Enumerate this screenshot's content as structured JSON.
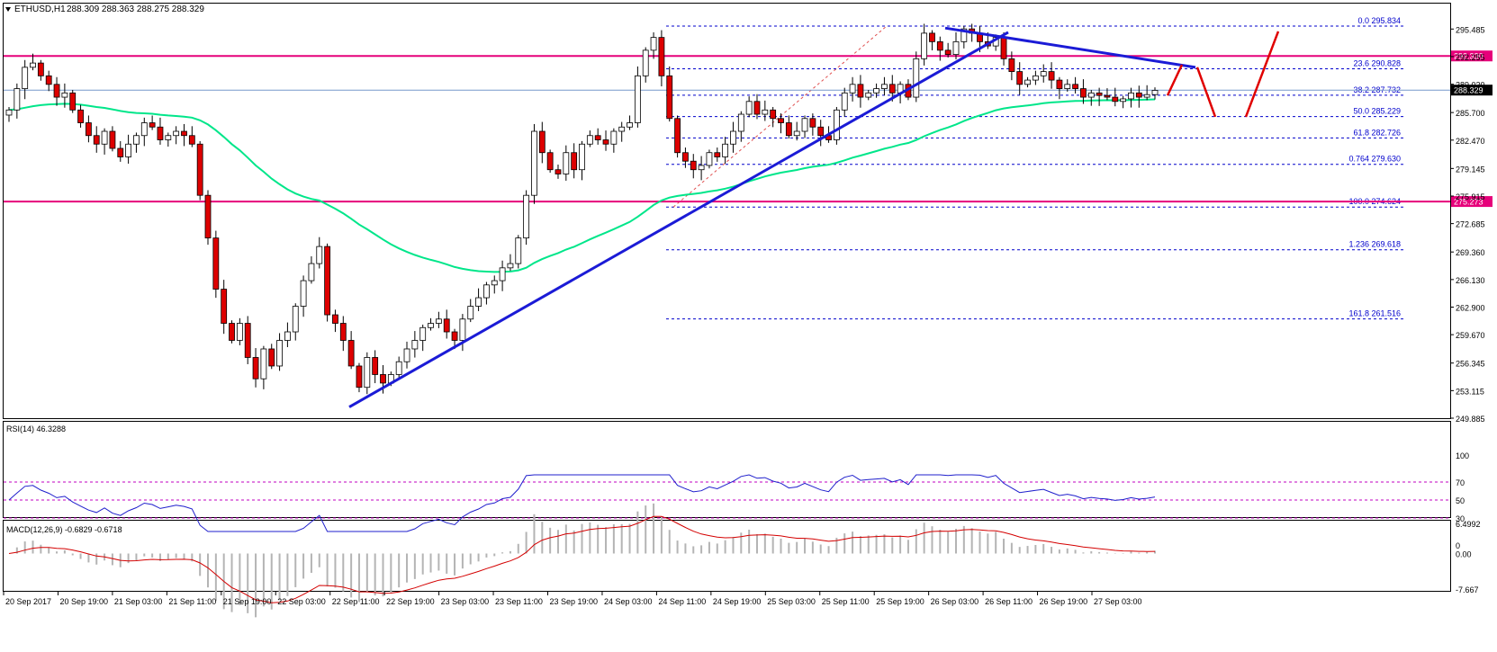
{
  "header": {
    "symbol_title": "ETHUSD,H1",
    "ohlc": "288.309 288.363 288.275 288.329"
  },
  "colors": {
    "bull": "#ffffff",
    "bear": "#dd0000",
    "candle_outline": "#000000",
    "ma": "#00e68a",
    "trend": "#1b1bd6",
    "resistance": "#e6007a",
    "fib": "#0000cc",
    "arrow": "#e00000",
    "rsi": "#1f1fcc",
    "macd_signal": "#d40000",
    "macd_hist": "#b4b4b4",
    "bid_line": "#7799cc"
  },
  "chart_data": [
    {
      "type": "candlestick",
      "title": "ETHUSD,H1 288.309 288.363 288.275 288.329",
      "ylim": [
        249.885,
        296.99
      ],
      "y_ticks": [
        "295.485",
        "292.255",
        "289.020",
        "285.700",
        "282.470",
        "279.145",
        "275.915",
        "272.685",
        "269.360",
        "266.130",
        "262.900",
        "259.670",
        "256.345",
        "253.115",
        "249.885"
      ],
      "x_ticks": [
        "20 Sep 2017",
        "20 Sep 19:00",
        "21 Sep 03:00",
        "21 Sep 11:00",
        "21 Sep 19:00",
        "22 Sep 03:00",
        "22 Sep 11:00",
        "22 Sep 19:00",
        "23 Sep 03:00",
        "23 Sep 11:00",
        "23 Sep 19:00",
        "24 Sep 03:00",
        "24 Sep 11:00",
        "24 Sep 19:00",
        "25 Sep 03:00",
        "25 Sep 11:00",
        "25 Sep 19:00",
        "26 Sep 03:00",
        "26 Sep 11:00",
        "26 Sep 19:00",
        "27 Sep 03:00"
      ],
      "candles_close_path": [
        286,
        288.5,
        291,
        291.5,
        290,
        289,
        287.5,
        288,
        286,
        284.5,
        283,
        282,
        283.5,
        281.5,
        280.5,
        282,
        283,
        284.5,
        284,
        282.5,
        283,
        283.5,
        283,
        282,
        276,
        271,
        265,
        261,
        259,
        261,
        257,
        254.5,
        258,
        256,
        259,
        260,
        263,
        266,
        268,
        270,
        262,
        261,
        259,
        256,
        253.5,
        257,
        255,
        254,
        255,
        256.5,
        258,
        259,
        260.5,
        261,
        261.5,
        260,
        259,
        261.5,
        263,
        264,
        265.5,
        266,
        267.5,
        268,
        271,
        276,
        283.5,
        281,
        279,
        278.5,
        281,
        279,
        282,
        283,
        282.5,
        282,
        283.5,
        284,
        284.5,
        290,
        293,
        294.5,
        290,
        285,
        281,
        280,
        279,
        279.5,
        281,
        280.5,
        282,
        283.5,
        285.5,
        287,
        285.5,
        286,
        285,
        284.5,
        283,
        283.5,
        285,
        284,
        283,
        282.5,
        286,
        288,
        289,
        287.5,
        288,
        288.5,
        289,
        288,
        289,
        287.5,
        292,
        295,
        294,
        293,
        292.5,
        294,
        295.5,
        295,
        294,
        293.5,
        294.5,
        292,
        290.5,
        289,
        289.5,
        290,
        290.5,
        289.5,
        288.5,
        289,
        288.5,
        287.5,
        288,
        287.7,
        287.5,
        287,
        287.3,
        288,
        287.5,
        287.8,
        288.3
      ],
      "moving_average_end": 284.8,
      "fib_levels": [
        {
          "label": "0.0",
          "value": 295.834
        },
        {
          "label": "23.6",
          "value": 290.828
        },
        {
          "label": "38.2",
          "value": 287.732
        },
        {
          "label": "50.0",
          "value": 285.229
        },
        {
          "label": "61.8",
          "value": 282.726
        },
        {
          "label": "0.764",
          "value": 279.63
        },
        {
          "label": "100.0",
          "value": 274.624
        },
        {
          "label": "1.236",
          "value": 269.618
        },
        {
          "label": "161.8",
          "value": 261.516
        }
      ],
      "horizontal_lines": [
        {
          "value": 292.33,
          "label": "292.330"
        },
        {
          "value": 275.273,
          "label": "275.273"
        }
      ],
      "current_price": "288.329",
      "trendlines": [
        {
          "name": "support",
          "from": [
            0,
            251.2
          ],
          "to": [
            0,
            295.1
          ]
        },
        {
          "name": "resistance",
          "from": [
            0,
            295.6
          ],
          "to": [
            0,
            291.0
          ]
        }
      ]
    },
    {
      "type": "line",
      "title": "RSI(14) 46.3288",
      "ylim": [
        0,
        100
      ],
      "levels": [
        70,
        50,
        30
      ],
      "y_ticks": [
        "100",
        "70",
        "50",
        "30",
        "0"
      ],
      "last_value": 46.3288
    },
    {
      "type": "bar",
      "title": "MACD(12,26,9) -0.6829 -0.6718",
      "ylim": [
        -7.667,
        6.4992
      ],
      "y_ticks": [
        "6.4992",
        "0.00",
        "-7.667"
      ],
      "macd": -0.6829,
      "signal": -0.6718
    }
  ]
}
